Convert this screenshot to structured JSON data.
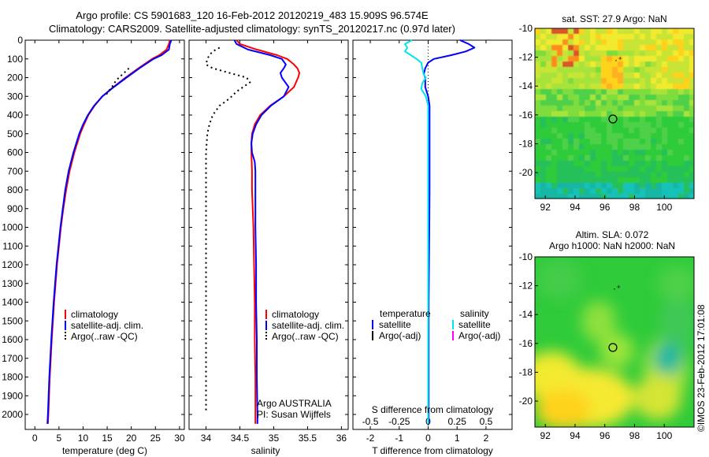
{
  "header": {
    "line1": "Argo profile: CS 5901683_120 16-Feb-2012 20120219_483 15.909S 96.574E",
    "line2": "Climatology: CARS2009. Satellite-adjusted climatology: synTS_20120217.nc (0.97d later)"
  },
  "colors": {
    "climatology": "#ff0000",
    "satellite": "#0000ff",
    "argo": "#000000",
    "salinity_sat": "#00e5ee",
    "salinity_argo": "#ff00ff"
  },
  "chart_data": [
    {
      "type": "line",
      "id": "temperature",
      "xlabel": "temperature (deg C)",
      "ylabel": "",
      "xlim": [
        -2,
        31
      ],
      "ylim": [
        2080,
        0
      ],
      "xticks": [
        "0",
        "5",
        "10",
        "15",
        "20",
        "25",
        "30"
      ],
      "yticks": [
        "0",
        "100",
        "200",
        "300",
        "400",
        "500",
        "600",
        "700",
        "800",
        "900",
        "1000",
        "1100",
        "1200",
        "1300",
        "1400",
        "1500",
        "1600",
        "1700",
        "1800",
        "1900",
        "2000"
      ],
      "legend": [
        "climatology",
        "satellite-adj. clim.",
        "Argo(..raw -QC)"
      ],
      "series": [
        {
          "name": "climatology",
          "depth": [
            0,
            20,
            50,
            80,
            100,
            150,
            200,
            250,
            300,
            350,
            400,
            450,
            500,
            600,
            700,
            800,
            900,
            1000,
            1200,
            1400,
            1600,
            1800,
            2000,
            2050
          ],
          "values": [
            28.0,
            27.8,
            27.3,
            25.8,
            24.3,
            21.5,
            18.8,
            16.3,
            14.0,
            12.4,
            11.1,
            10.2,
            9.4,
            8.2,
            7.2,
            6.5,
            5.9,
            5.4,
            4.6,
            4.0,
            3.5,
            3.1,
            2.8,
            2.7
          ]
        },
        {
          "name": "satellite-adj. clim.",
          "depth": [
            0,
            20,
            50,
            80,
            100,
            150,
            200,
            250,
            300,
            350,
            400,
            450,
            500,
            600,
            700,
            800,
            900,
            1000,
            1200,
            1400,
            1600,
            1800,
            2000,
            2050
          ],
          "values": [
            28.3,
            28.0,
            27.8,
            26.3,
            24.6,
            21.7,
            19.0,
            16.4,
            14.0,
            12.3,
            11.0,
            10.0,
            9.2,
            8.0,
            7.0,
            6.3,
            5.8,
            5.3,
            4.5,
            3.9,
            3.4,
            3.0,
            2.7,
            2.6
          ]
        },
        {
          "name": "Argo(..raw -QC)",
          "depth": [
            150,
            175,
            200,
            225,
            250,
            275,
            300
          ],
          "values": [
            19.5,
            18.5,
            17.4,
            16.6,
            16.0,
            15.2,
            14.6
          ]
        }
      ]
    },
    {
      "type": "line",
      "id": "salinity",
      "xlabel": "salinity",
      "xlim": [
        33.75,
        36.1
      ],
      "ylim": [
        2080,
        0
      ],
      "xticks": [
        "34",
        "34.5",
        "35",
        "35.5",
        "36"
      ],
      "legend": [
        "climatology",
        "satellite-adj. clim.",
        "Argo(..raw -QC)"
      ],
      "annotation": [
        "Argo AUSTRALIA",
        "PI: Susan Wijffels"
      ],
      "series": [
        {
          "name": "climatology",
          "depth": [
            0,
            20,
            50,
            80,
            100,
            130,
            150,
            175,
            200,
            250,
            300,
            350,
            400,
            450,
            500,
            550,
            600,
            700,
            800,
            900,
            1000,
            1200,
            1400,
            1600,
            1800,
            2000,
            2050
          ],
          "values": [
            34.45,
            34.5,
            34.75,
            35.05,
            35.2,
            35.3,
            35.35,
            35.38,
            35.36,
            35.3,
            35.15,
            34.95,
            34.8,
            34.72,
            34.68,
            34.67,
            34.67,
            34.68,
            34.68,
            34.69,
            34.7,
            34.71,
            34.72,
            34.72,
            34.73,
            34.73,
            34.73
          ]
        },
        {
          "name": "satellite-adj. clim.",
          "depth": [
            0,
            20,
            50,
            80,
            100,
            130,
            150,
            175,
            200,
            250,
            300,
            350,
            400,
            450,
            500,
            550,
            600,
            650,
            700,
            800,
            900,
            1000,
            1200,
            1400,
            1600,
            1800,
            2000,
            2050
          ],
          "values": [
            34.42,
            34.45,
            34.62,
            34.95,
            35.12,
            35.18,
            35.15,
            35.1,
            35.12,
            35.22,
            35.15,
            34.96,
            34.82,
            34.74,
            34.69,
            34.67,
            34.68,
            34.72,
            34.73,
            34.73,
            34.73,
            34.73,
            34.74,
            34.74,
            34.75,
            34.75,
            34.76,
            34.76
          ]
        },
        {
          "name": "Argo(..raw -QC)",
          "depth": [
            40,
            60,
            80,
            100,
            130,
            150,
            175,
            200,
            225,
            250,
            275,
            300,
            325,
            350,
            400,
            450,
            500,
            600,
            700,
            800,
            900,
            1000,
            1200,
            1400,
            1600,
            1800,
            1900,
            1990
          ],
          "values": [
            34.2,
            34.1,
            34.05,
            34.02,
            34.0,
            34.1,
            34.35,
            34.6,
            34.65,
            34.55,
            34.45,
            34.38,
            34.3,
            34.2,
            34.1,
            34.05,
            34.02,
            34.0,
            34.0,
            34.0,
            34.0,
            34.0,
            34.0,
            34.0,
            34.0,
            34.0,
            34.0,
            34.0
          ]
        }
      ]
    },
    {
      "type": "line",
      "id": "difference",
      "xlabel": "T difference from climatology",
      "top_label": "S difference from climatology",
      "xlim": [
        -2.6,
        2.9
      ],
      "ylim": [
        2080,
        0
      ],
      "xticks": [
        "-2",
        "-1",
        "0",
        "1",
        "2"
      ],
      "top_ticks": [
        "-0.5",
        "-0.25",
        "0",
        "0.25",
        "0.5"
      ],
      "legend_titles": [
        "temperature",
        "salinity"
      ],
      "legend": [
        "satellite",
        "Argo(-adj)",
        "satellite",
        "Argo(-adj)"
      ],
      "series": [
        {
          "name": "temperature satellite",
          "depth": [
            0,
            20,
            40,
            60,
            80,
            100,
            120,
            150,
            180,
            200,
            250,
            300,
            350,
            400,
            500,
            600,
            700,
            800,
            1000,
            1200,
            1400,
            1600,
            1800,
            2000,
            2050
          ],
          "values": [
            1.1,
            1.4,
            1.6,
            1.3,
            0.8,
            0.2,
            0.0,
            -0.1,
            -0.15,
            -0.1,
            -0.1,
            0.0,
            0.05,
            0.05,
            0.05,
            0.05,
            0.05,
            0.05,
            0.04,
            0.03,
            0.02,
            0.02,
            0.02,
            0.02,
            0.02
          ]
        },
        {
          "name": "salinity satellite",
          "depth": [
            0,
            20,
            40,
            60,
            80,
            100,
            120,
            150,
            180,
            200,
            230,
            260,
            300,
            350,
            400,
            500,
            600,
            700,
            800,
            1000,
            1200,
            1400,
            1600,
            1800,
            2000,
            2050
          ],
          "values": [
            -0.14,
            -0.2,
            -0.18,
            -0.2,
            -0.15,
            -0.1,
            -0.06,
            -0.05,
            -0.04,
            -0.02,
            -0.05,
            -0.06,
            -0.02,
            0.0,
            0.0,
            0.0,
            0.0,
            0.0,
            0.0,
            0.0,
            0.0,
            0.0,
            0.0,
            0.0,
            0.0,
            0.0
          ]
        }
      ]
    }
  ],
  "maps": {
    "sst": {
      "title": "sat. SST: 27.9 Argo: NaN",
      "xticks": [
        "92",
        "94",
        "96",
        "98",
        "100"
      ],
      "yticks": [
        "-10",
        "-12",
        "-14",
        "-16",
        "-18",
        "-20"
      ],
      "profile_lon": 96.574,
      "profile_lat": -15.909
    },
    "sla": {
      "title1": "Altim. SLA: 0.072",
      "title2": "Argo h1000: NaN h2000: NaN",
      "xticks": [
        "92",
        "94",
        "96",
        "98",
        "100"
      ],
      "yticks": [
        "-10",
        "-12",
        "-14",
        "-16",
        "-18",
        "-20"
      ],
      "profile_lon": 96.574,
      "profile_lat": -15.909
    }
  },
  "footer": {
    "credit": "©IMOS 23-Feb-2012 17:01:08"
  }
}
